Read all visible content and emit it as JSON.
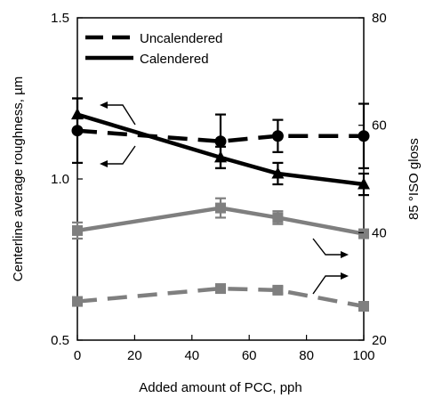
{
  "chart_data": {
    "type": "line",
    "xlabel": "Added amount of PCC, pph",
    "ylabel": "Centerline average roughness, µm",
    "y2label": "85 °ISO gloss",
    "xlim": [
      0,
      100
    ],
    "ylim": [
      0.5,
      1.5
    ],
    "y2lim": [
      20,
      80
    ],
    "xticks": [
      "0",
      "20",
      "40",
      "60",
      "80",
      "100"
    ],
    "yticks": [
      "0.5",
      "1.0",
      "1.5"
    ],
    "y2ticks": [
      "20",
      "40",
      "60",
      "80"
    ],
    "legend": {
      "placement": "top-left"
    },
    "series": [
      {
        "name": "Uncalendered",
        "axis": "right",
        "metric": "gloss",
        "style": "dashed",
        "color": "#000000",
        "marker": "circle",
        "x": [
          0,
          50,
          70,
          100
        ],
        "y": [
          59,
          57,
          58,
          58
        ],
        "err": [
          6,
          5,
          3,
          6
        ]
      },
      {
        "name": "Calendered",
        "axis": "right",
        "metric": "gloss",
        "style": "solid",
        "color": "#000000",
        "marker": "triangle",
        "x": [
          0,
          50,
          70,
          100
        ],
        "y": [
          62,
          54,
          51,
          49
        ],
        "err": [
          3,
          2,
          2,
          2
        ]
      },
      {
        "axis": "left",
        "metric": "roughness",
        "style": "solid",
        "color": "#7f7f7f",
        "marker": "square",
        "x": [
          0,
          50,
          70,
          100
        ],
        "y": [
          0.84,
          0.91,
          0.88,
          0.83
        ],
        "err": [
          0.025,
          0.03,
          0.02,
          0.01
        ]
      },
      {
        "axis": "left",
        "metric": "roughness",
        "style": "dashed",
        "color": "#7f7f7f",
        "marker": "square",
        "x": [
          0,
          50,
          70,
          100
        ],
        "y": [
          0.62,
          0.66,
          0.655,
          0.605
        ],
        "err": [
          0.012,
          0.01,
          0.01,
          0.01
        ]
      }
    ]
  }
}
